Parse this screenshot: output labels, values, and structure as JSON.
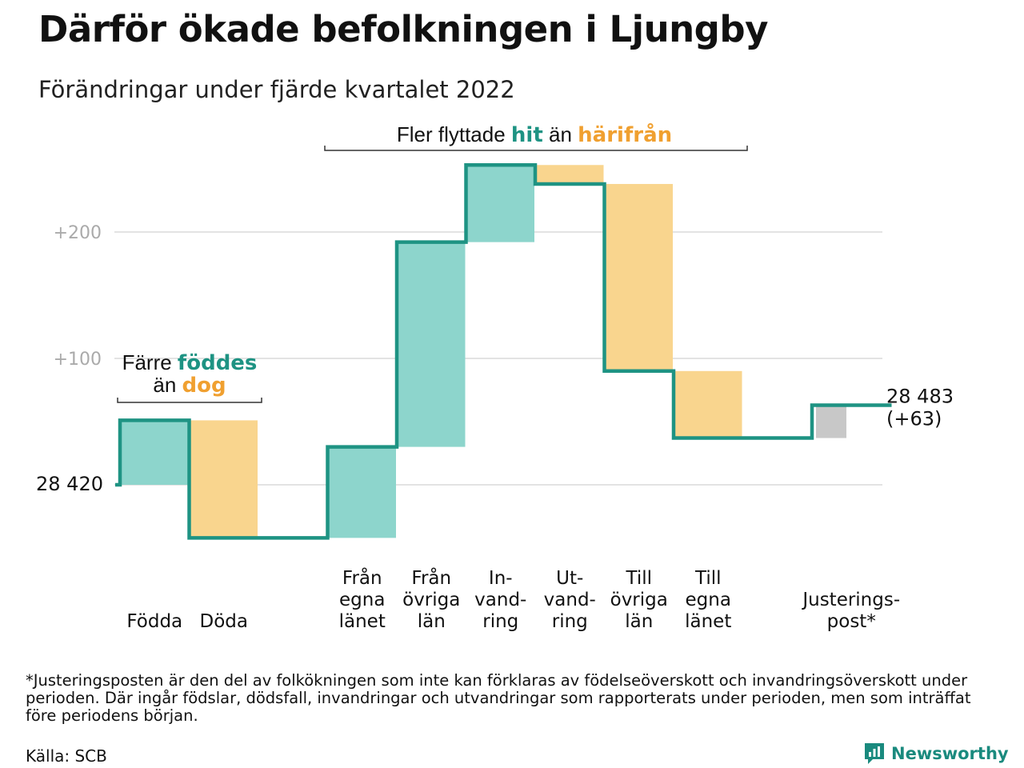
{
  "title": "Därför ökade befolkningen i Ljungby",
  "subtitle": "Förändringar under fjärde kvartalet 2022",
  "colors": {
    "increase": "#8dd5cc",
    "decrease": "#f9d58e",
    "adjustment": "#c8c8c8",
    "line": "#1e9383",
    "teal_text": "#1e9383",
    "orange_text": "#f0a030",
    "grid": "#e3e3e3",
    "tick": "#aaaaaa"
  },
  "annotations": {
    "births": {
      "prefix": "Färre ",
      "hit": "föddes",
      "middle": "än ",
      "away": "dog"
    },
    "migration": {
      "prefix": "Fler flyttade ",
      "hit": "hit",
      "middle": " än ",
      "away": "härifrån"
    }
  },
  "start_label": "28 420",
  "end_label": {
    "value": "28 483",
    "change": "(+63)"
  },
  "chart_data": {
    "type": "waterfall",
    "baseline": 28420,
    "end_value": 28483,
    "yticks": [
      {
        "value": 100,
        "label": "+100"
      },
      {
        "value": 200,
        "label": "+200"
      }
    ],
    "ylim": [
      -60,
      260
    ],
    "steps": [
      {
        "label": [
          "Födda"
        ],
        "delta": 51,
        "kind": "increase"
      },
      {
        "label": [
          "Döda"
        ],
        "delta": -93,
        "kind": "decrease"
      },
      {
        "label": [],
        "delta": 0,
        "kind": "gap"
      },
      {
        "label": [
          "Från",
          "egna",
          "länet"
        ],
        "delta": 72,
        "kind": "increase"
      },
      {
        "label": [
          "Från",
          "övriga",
          "län"
        ],
        "delta": 162,
        "kind": "increase"
      },
      {
        "label": [
          "In-",
          "vand-",
          "ring"
        ],
        "delta": 61,
        "kind": "increase"
      },
      {
        "label": [
          "Ut-",
          "vand-",
          "ring"
        ],
        "delta": -15,
        "kind": "decrease"
      },
      {
        "label": [
          "Till",
          "övriga",
          "län"
        ],
        "delta": -148,
        "kind": "decrease"
      },
      {
        "label": [
          "Till",
          "egna",
          "länet"
        ],
        "delta": -53,
        "kind": "decrease"
      },
      {
        "label": [],
        "delta": 0,
        "kind": "gap"
      },
      {
        "label": [
          "Justerings-",
          "post*"
        ],
        "delta": 26,
        "kind": "adjustment"
      }
    ]
  },
  "footnote": "*Justeringsposten är den del av folkökningen som inte kan förklaras av födelseöverskott och invandringsöverskott under perioden. Där ingår födslar, dödsfall, invandringar och utvandringar som rapporterats under perioden, men som inträffat före periodens början.",
  "source": "Källa: SCB",
  "brand": {
    "name": "Newsworthy",
    "icon": "newsworthy-logo-icon"
  }
}
